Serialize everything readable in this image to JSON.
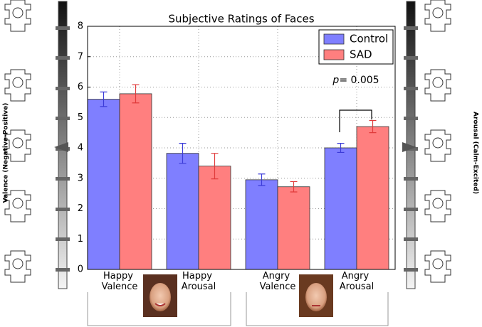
{
  "chart_data": {
    "type": "bar",
    "title": "Subjective Ratings of Faces",
    "categories": [
      "Happy Valence",
      "Happy Arousal",
      "Angry Valence",
      "Angry Arousal"
    ],
    "series": [
      {
        "name": "Control",
        "color": "#7f7fff",
        "error_color": "#3b3bd8",
        "values": [
          5.6,
          3.82,
          2.95,
          4.0
        ],
        "errors": [
          0.24,
          0.33,
          0.19,
          0.15
        ]
      },
      {
        "name": "SAD",
        "color": "#ff7f7f",
        "error_color": "#e03b3b",
        "values": [
          5.78,
          3.4,
          2.72,
          4.7
        ],
        "errors": [
          0.3,
          0.42,
          0.17,
          0.2
        ]
      }
    ],
    "ylim": [
      0,
      8
    ],
    "yticks": [
      0,
      1,
      2,
      3,
      4,
      5,
      6,
      7,
      8
    ],
    "grid": true,
    "legend": "upper right",
    "annotation": "p= 0.005",
    "left_scale_label": "Valence (Negative-Positive)",
    "right_scale_label": "Arousal (Calm-Excited)"
  }
}
